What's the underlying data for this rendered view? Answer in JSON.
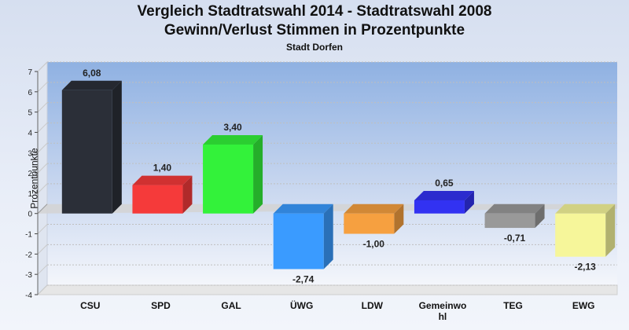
{
  "header": {
    "title1": "Vergleich Stadtratswahl 2014 - Stadtratswahl 2008",
    "title2": "Gewinn/Verlust Stimmen in Prozentpunkte",
    "subtitle": "Stadt Dorfen"
  },
  "chart_data": {
    "type": "bar",
    "title": "Vergleich Stadtratswahl 2014 - Stadtratswahl 2008 Gewinn/Verlust Stimmen in Prozentpunkte",
    "subtitle": "Stadt Dorfen",
    "ylabel": "Prozentpunkte",
    "xlabel": "",
    "ylim": [
      -4,
      7
    ],
    "yticks": [
      "-4",
      "-3",
      "-2",
      "-1",
      "0",
      "1",
      "2",
      "3",
      "4",
      "5",
      "6",
      "7"
    ],
    "grid": true,
    "categories": [
      "CSU",
      "SPD",
      "GAL",
      "ÜWG",
      "LDW",
      "Gemeinwohl",
      "TEG",
      "EWG"
    ],
    "category_labels": [
      [
        "CSU"
      ],
      [
        "SPD"
      ],
      [
        "GAL"
      ],
      [
        "ÜWG"
      ],
      [
        "LDW"
      ],
      [
        "Gemeinwo",
        "hl"
      ],
      [
        "TEG"
      ],
      [
        "EWG"
      ]
    ],
    "values": [
      6.08,
      1.4,
      3.4,
      -2.74,
      -1.0,
      0.65,
      -0.71,
      -2.13
    ],
    "value_labels": [
      "6,08",
      "1,40",
      "3,40",
      "-2,74",
      "-1,00",
      "0,65",
      "-0,71",
      "-2,13"
    ],
    "colors": [
      "#2b2f38",
      "#f53a3a",
      "#33f23a",
      "#3a9bff",
      "#f6a040",
      "#3232f2",
      "#999999",
      "#f6f69a"
    ]
  }
}
